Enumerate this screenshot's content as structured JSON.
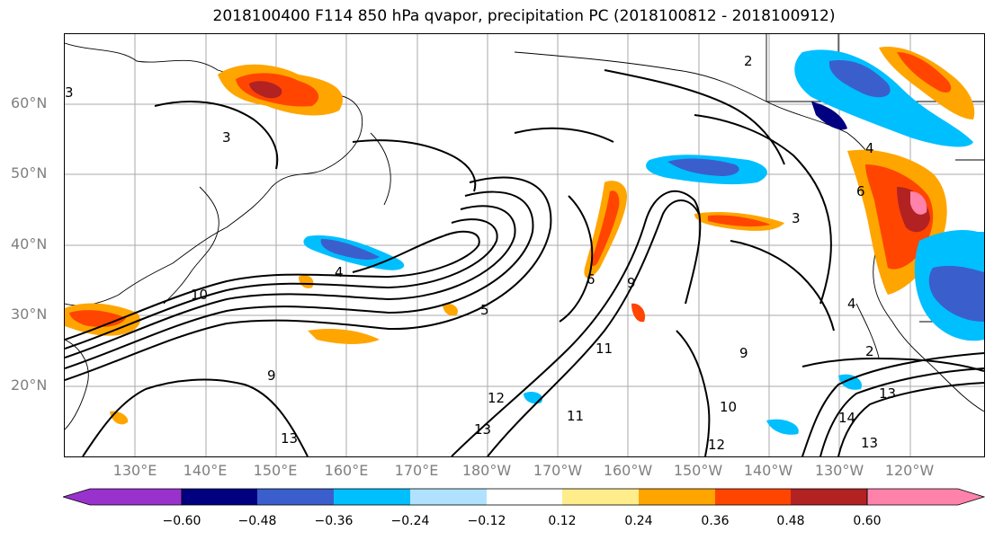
{
  "title": "2018100400 F114 850 hPa qvapor, precipitation PC (2018100812 - 2018100912)",
  "lat_labels": [
    "60°N",
    "50°N",
    "40°N",
    "30°N",
    "20°N"
  ],
  "lon_labels": [
    "130°E",
    "140°E",
    "150°E",
    "160°E",
    "170°E",
    "180°W",
    "170°W",
    "160°W",
    "150°W",
    "140°W",
    "130°W",
    "120°W"
  ],
  "contour_labels": [
    "2",
    "3",
    "3",
    "4",
    "4",
    "5",
    "6",
    "6",
    "9",
    "9",
    "9",
    "10",
    "10",
    "11",
    "11",
    "12",
    "12",
    "13",
    "13",
    "13",
    "13",
    "14",
    "2",
    "3",
    "4"
  ],
  "colorbar": {
    "labels": [
      "−0.60",
      "−0.48",
      "−0.36",
      "−0.24",
      "−0.12",
      "0.12",
      "0.24",
      "0.36",
      "0.48",
      "0.60"
    ],
    "colors": [
      "#9932cc",
      "#000080",
      "#3a5fcd",
      "#00bfff",
      "#b0e2ff",
      "#ffffff",
      "#ffec8b",
      "#ffa500",
      "#ff4500",
      "#b22222",
      "#ff82ab"
    ]
  },
  "map": {
    "projection": "cylindrical",
    "lon_range": "120°E to 115°W",
    "lat_range": "10°N to 70°N",
    "contour_field": "850 hPa qvapor",
    "shaded_field": "precipitation PC"
  }
}
